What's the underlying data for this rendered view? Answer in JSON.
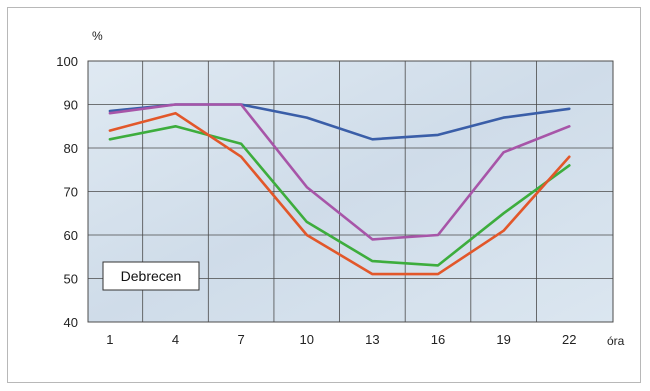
{
  "chart_data": {
    "type": "line",
    "title": "",
    "y_unit": "%",
    "x_unit": "óra",
    "annotation": "Debrecen",
    "x": [
      1,
      4,
      7,
      10,
      13,
      16,
      19,
      22
    ],
    "xlim": [
      0,
      24
    ],
    "ylim": [
      40,
      100
    ],
    "y_ticks": [
      40,
      50,
      60,
      70,
      80,
      90,
      100
    ],
    "grid": true,
    "legend": "none",
    "series": [
      {
        "color": "#3a5ea8",
        "values": [
          88.5,
          90,
          90,
          87,
          82,
          83,
          87,
          89
        ]
      },
      {
        "color": "#a755a8",
        "values": [
          88,
          90,
          90,
          71,
          59,
          60,
          79,
          85
        ]
      },
      {
        "color": "#3dad3d",
        "values": [
          82,
          85,
          81,
          63,
          54,
          53,
          65,
          76
        ]
      },
      {
        "color": "#e2572a",
        "values": [
          84,
          88,
          78,
          60,
          51,
          51,
          61,
          78
        ]
      }
    ]
  }
}
